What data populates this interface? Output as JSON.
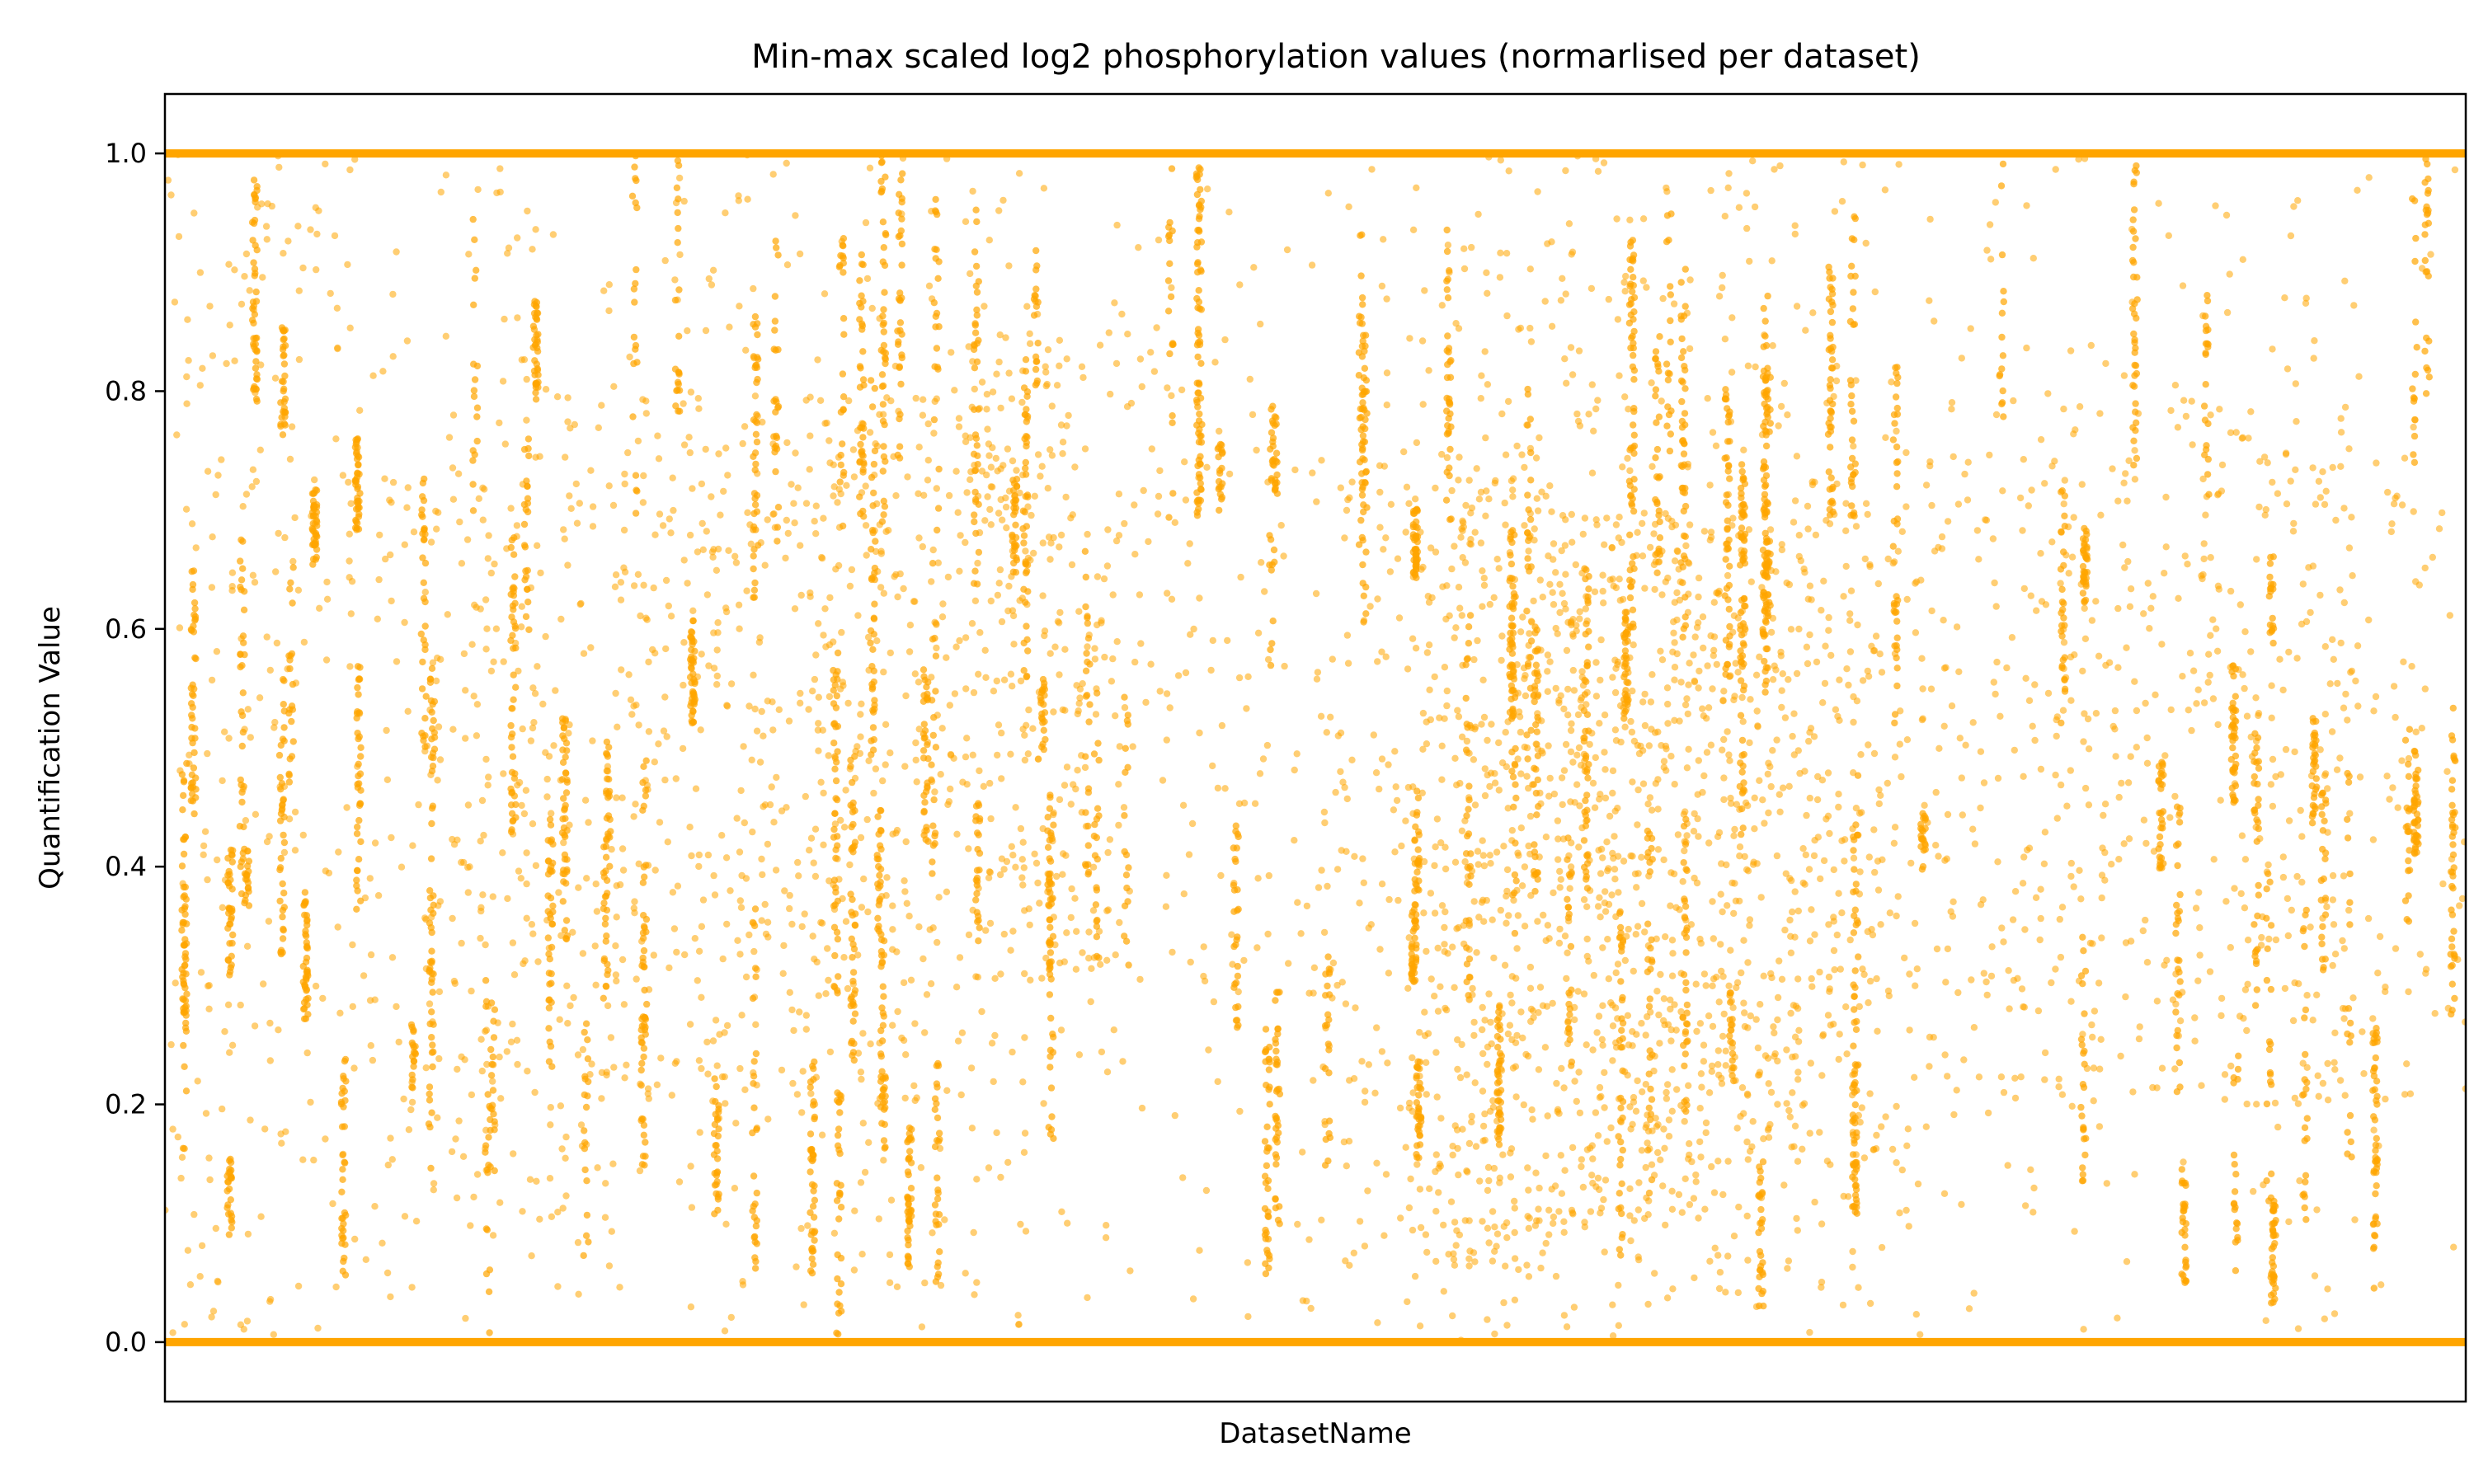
{
  "chart_data": {
    "type": "scatter",
    "title": "Min-max scaled log2 phosphorylation values (normarlised per dataset)",
    "xlabel": "DatasetName",
    "ylabel": "Quantification Value",
    "ylim": [
      -0.05,
      1.05
    ],
    "yticks": [
      0.0,
      0.2,
      0.4,
      0.6,
      0.8,
      1.0
    ],
    "ytick_labels": [
      "0.0",
      "0.2",
      "0.4",
      "0.6",
      "0.8",
      "1.0"
    ],
    "xticks_shown": false,
    "grid": false,
    "legend": "none",
    "marker_color": "#FFA500",
    "marker_alpha": 0.55,
    "series": [
      {
        "points_note_values_only": true,
        "boundary_values": [
          0.0,
          1.0
        ],
        "dense_region_density_profile": [
          {
            "x": 0.04,
            "y_range": [
              0.0,
              1.0
            ],
            "density": 0.45
          },
          {
            "x": 0.15,
            "y_range": [
              0.1,
              0.8
            ],
            "density": 0.75
          },
          {
            "x": 0.24,
            "y_range": [
              0.2,
              0.8
            ],
            "density": 0.65
          },
          {
            "x": 0.31,
            "y_range": [
              0.2,
              0.8
            ],
            "density": 0.7
          },
          {
            "x": 0.38,
            "y_range": [
              0.3,
              0.85
            ],
            "density": 0.9
          },
          {
            "x": 0.57,
            "y_range": [
              0.05,
              0.75
            ],
            "density": 1.6
          },
          {
            "x": 0.64,
            "y_range": [
              0.1,
              0.7
            ],
            "density": 1.9
          },
          {
            "x": 0.71,
            "y_range": [
              0.15,
              0.7
            ],
            "density": 1.3
          },
          {
            "x": 0.82,
            "y_range": [
              0.2,
              0.8
            ],
            "density": 0.6
          },
          {
            "x": 0.93,
            "y_range": [
              0.2,
              0.8
            ],
            "density": 0.6
          }
        ]
      }
    ]
  }
}
